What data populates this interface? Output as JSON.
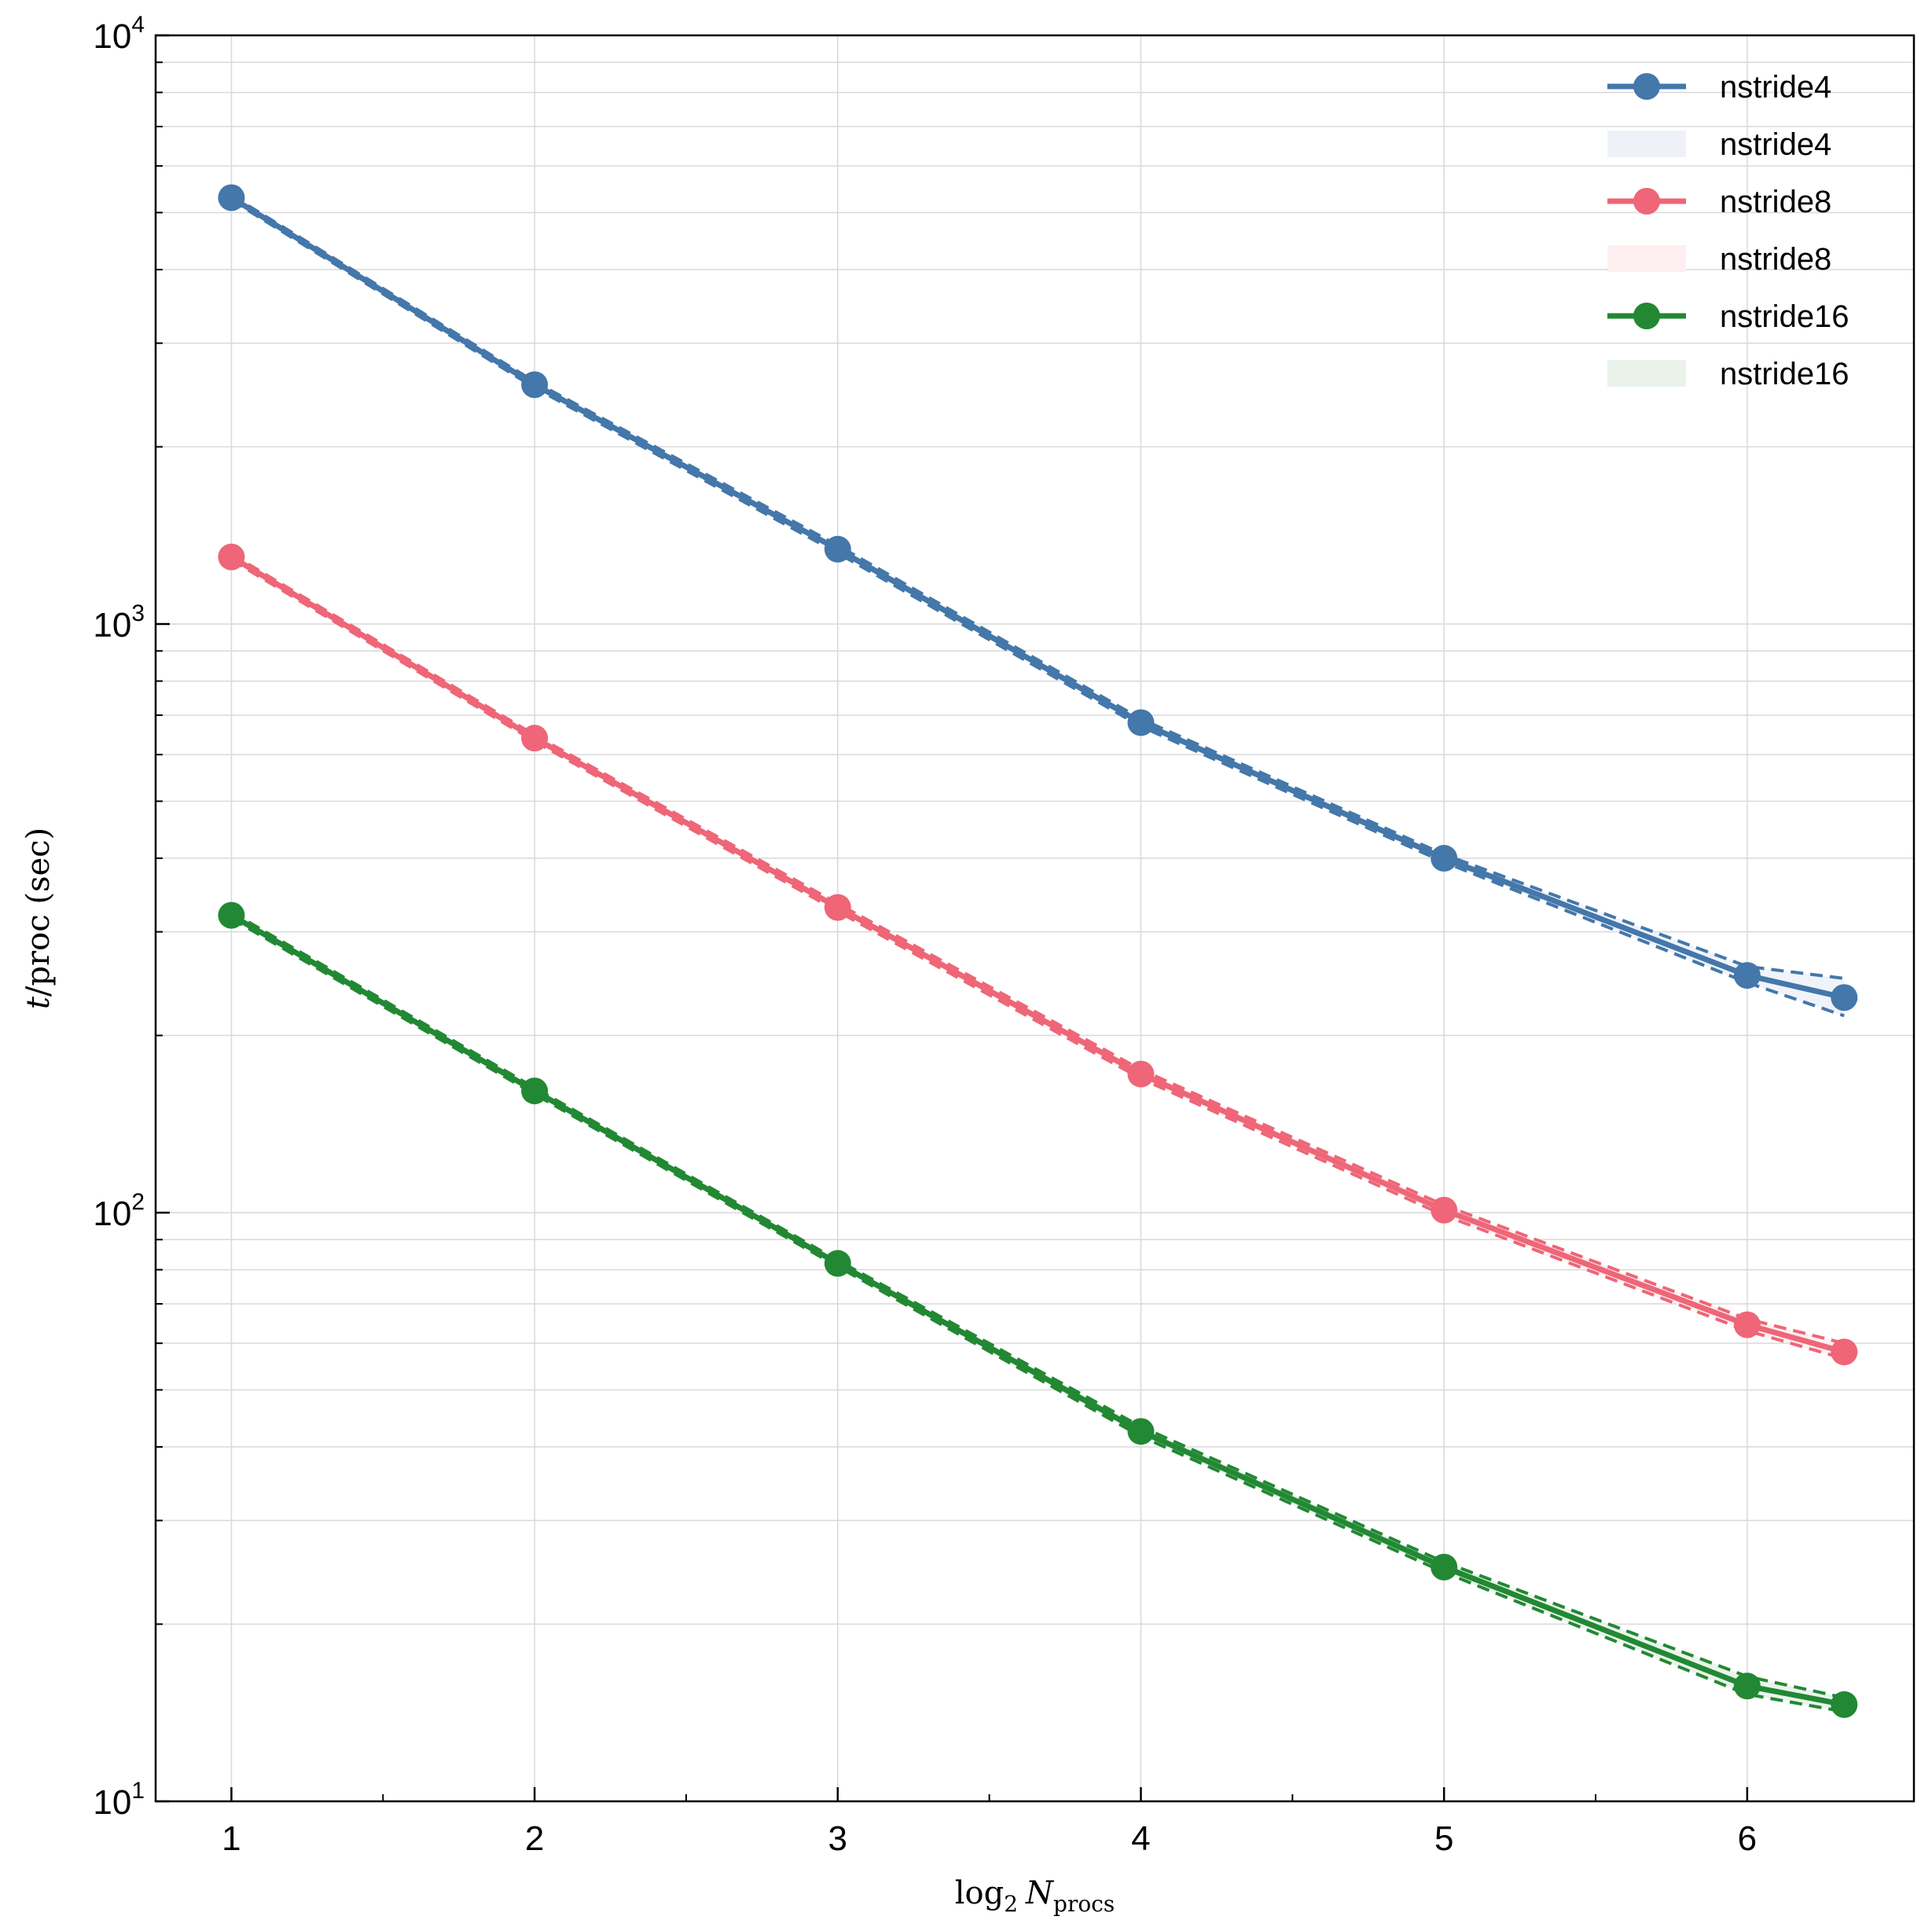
{
  "chart_data": {
    "type": "line",
    "title": "",
    "xlabel": "log2 Nprocs",
    "xlabel_parts": {
      "prefix": "log",
      "prefix_sub": "2",
      "symbol": "N",
      "symbol_sub": "procs"
    },
    "ylabel": "t/proc (sec)",
    "ylabel_parts": {
      "symbol": "t",
      "rest": "/proc (sec)"
    },
    "xlim": [
      0.75,
      6.55
    ],
    "ylim": [
      10,
      10000
    ],
    "yscale": "log",
    "grid": true,
    "legend_position": "top-right",
    "x_ticks": [
      1,
      2,
      3,
      4,
      5,
      6
    ],
    "x_tick_labels": [
      "1",
      "2",
      "3",
      "4",
      "5",
      "6"
    ],
    "y_ticks": [
      10,
      100,
      1000,
      10000
    ],
    "y_tick_labels": [
      {
        "base": "10",
        "exp": "1"
      },
      {
        "base": "10",
        "exp": "2"
      },
      {
        "base": "10",
        "exp": "3"
      },
      {
        "base": "10",
        "exp": "4"
      }
    ],
    "x": [
      1,
      2,
      3,
      4,
      5,
      6,
      6.32
    ],
    "series": [
      {
        "name": "nstride4",
        "band_name": "nstride4",
        "color": "#4477aa",
        "band_color": "#eef2f8",
        "values": [
          5300,
          2550,
          1340,
          680,
          400,
          253,
          232
        ],
        "upper": [
          5350,
          2580,
          1360,
          690,
          406,
          262,
          250
        ],
        "lower": [
          5250,
          2520,
          1320,
          670,
          394,
          246,
          216
        ]
      },
      {
        "name": "nstride8",
        "band_name": "nstride8",
        "color": "#ee6677",
        "band_color": "#fdeef0",
        "values": [
          1300,
          640,
          330,
          172,
          101,
          64.5,
          58
        ],
        "upper": [
          1315,
          648,
          335,
          175,
          103,
          66,
          60
        ],
        "lower": [
          1285,
          632,
          325,
          169,
          99,
          63,
          56.5
        ]
      },
      {
        "name": "nstride16",
        "band_name": "nstride16",
        "color": "#228833",
        "band_color": "#e9f3ea",
        "values": [
          320,
          161,
          82,
          42.5,
          25,
          15.7,
          14.6
        ],
        "upper": [
          324,
          163,
          83,
          43.3,
          25.5,
          16.3,
          15.0
        ],
        "lower": [
          316,
          159,
          81,
          41.7,
          24.5,
          15.2,
          14.2
        ]
      }
    ]
  }
}
